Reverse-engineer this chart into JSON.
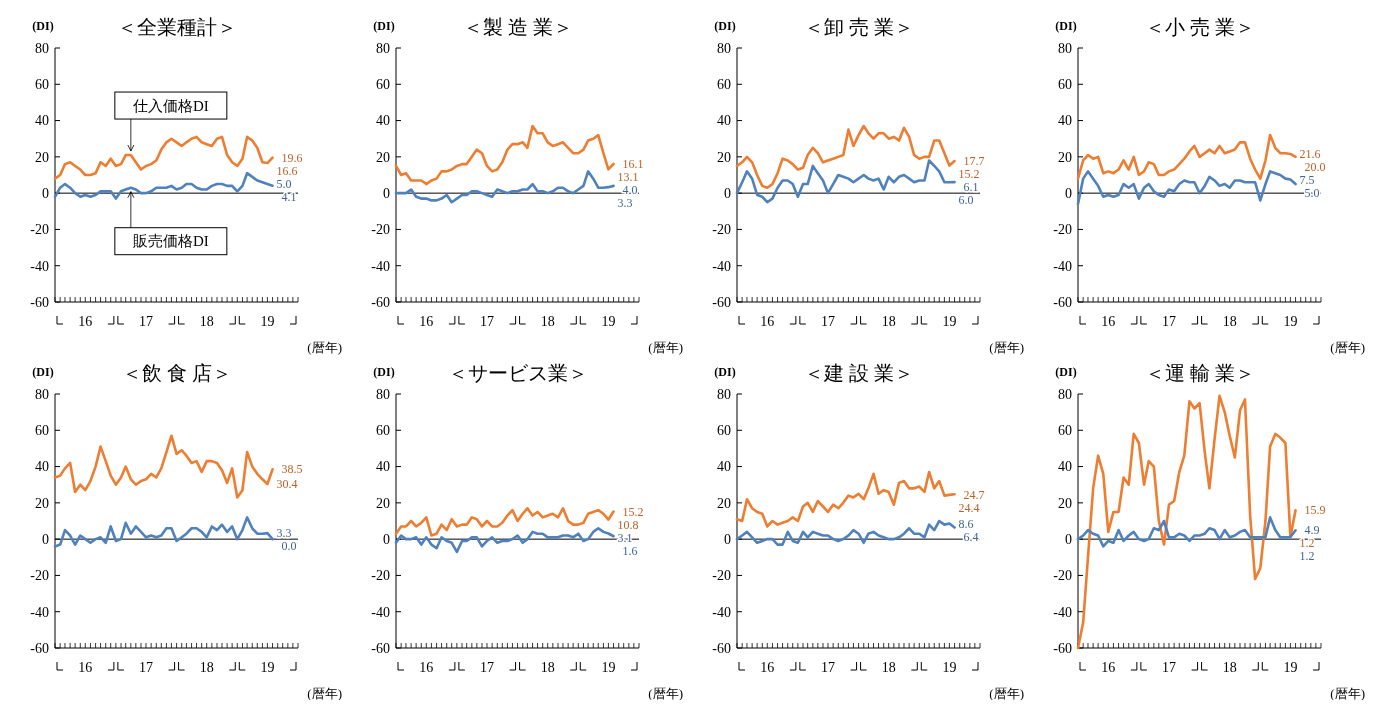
{
  "chart_data": [
    {
      "type": "line",
      "title": "＜全業種計＞",
      "ylabel": "(DI)",
      "xlabel": "(暦年)",
      "ylim": [
        -60,
        80
      ],
      "yticks": [
        -60,
        -40,
        -20,
        0,
        20,
        40,
        60,
        80
      ],
      "xlim": [
        "2016-01",
        "2020-01"
      ],
      "xticks": [
        {
          "value": "2016-07",
          "label": "16"
        },
        {
          "value": "2017-07",
          "label": "17"
        },
        {
          "value": "2018-07",
          "label": "18"
        },
        {
          "value": "2019-07",
          "label": "19"
        }
      ],
      "ref_lines": [
        {
          "axis": "y",
          "value": 0,
          "color": "#000000"
        }
      ],
      "x": [
        "2016-01",
        "2016-02",
        "2016-03",
        "2016-04",
        "2016-05",
        "2016-06",
        "2016-07",
        "2016-08",
        "2016-09",
        "2016-10",
        "2016-11",
        "2016-12",
        "2017-01",
        "2017-02",
        "2017-03",
        "2017-04",
        "2017-05",
        "2017-06",
        "2017-07",
        "2017-08",
        "2017-09",
        "2017-10",
        "2017-11",
        "2017-12",
        "2018-01",
        "2018-02",
        "2018-03",
        "2018-04",
        "2018-05",
        "2018-06",
        "2018-07",
        "2018-08",
        "2018-09",
        "2018-10",
        "2018-11",
        "2018-12",
        "2019-01",
        "2019-02",
        "2019-03",
        "2019-04",
        "2019-05",
        "2019-06",
        "2019-07",
        "2019-08"
      ],
      "series": [
        {
          "name": "仕入価格DI",
          "color": "#ed7d31",
          "values": [
            8,
            10,
            16,
            17,
            15,
            13,
            10,
            10,
            11,
            17,
            15,
            19,
            15,
            16,
            21,
            21,
            17,
            13,
            15,
            16,
            18,
            24,
            28,
            30,
            28,
            26,
            28,
            30,
            31,
            28,
            27,
            26,
            30,
            31,
            21,
            17,
            15,
            19,
            31,
            29,
            25,
            17,
            16.6,
            19.6
          ],
          "value_labels": [
            null,
            null,
            null,
            null,
            null,
            null,
            null,
            null,
            null,
            null,
            null,
            null,
            null,
            null,
            null,
            null,
            null,
            null,
            null,
            null,
            null,
            null,
            null,
            null,
            null,
            null,
            null,
            null,
            null,
            null,
            null,
            null,
            null,
            null,
            null,
            null,
            null,
            null,
            null,
            null,
            null,
            null,
            "16.6",
            "19.6"
          ]
        },
        {
          "name": "販売価格DI",
          "color": "#4f81bd",
          "values": [
            -2,
            3,
            5,
            3,
            0,
            -2,
            -1,
            -2,
            -1,
            1,
            1,
            1,
            -3,
            1,
            2,
            3,
            2,
            0,
            0,
            1,
            3,
            3,
            3,
            4,
            2,
            3,
            5,
            5,
            3,
            2,
            2,
            4,
            5,
            5,
            4,
            4,
            1,
            4,
            11,
            9,
            7,
            6,
            5.0,
            4.1
          ],
          "value_labels": [
            null,
            null,
            null,
            null,
            null,
            null,
            null,
            null,
            null,
            null,
            null,
            null,
            null,
            null,
            null,
            null,
            null,
            null,
            null,
            null,
            null,
            null,
            null,
            null,
            null,
            null,
            null,
            null,
            null,
            null,
            null,
            null,
            null,
            null,
            null,
            null,
            null,
            null,
            null,
            null,
            null,
            null,
            "5.0",
            "4.1"
          ]
        }
      ]
    },
    {
      "type": "line",
      "title": "＜製 造 業＞",
      "ylabel": "(DI)",
      "xlabel": "(暦年)",
      "ylim": [
        -60,
        80
      ],
      "yticks": [
        -60,
        -40,
        -20,
        0,
        20,
        40,
        60,
        80
      ],
      "xlim": [
        "2016-01",
        "2020-01"
      ],
      "xticks": [
        {
          "value": "2016-07",
          "label": "16"
        },
        {
          "value": "2017-07",
          "label": "17"
        },
        {
          "value": "2018-07",
          "label": "18"
        },
        {
          "value": "2019-07",
          "label": "19"
        }
      ],
      "ref_lines": [
        {
          "axis": "y",
          "value": 0,
          "color": "#000000"
        }
      ],
      "x": [
        "2016-01",
        "2016-02",
        "2016-03",
        "2016-04",
        "2016-05",
        "2016-06",
        "2016-07",
        "2016-08",
        "2016-09",
        "2016-10",
        "2016-11",
        "2016-12",
        "2017-01",
        "2017-02",
        "2017-03",
        "2017-04",
        "2017-05",
        "2017-06",
        "2017-07",
        "2017-08",
        "2017-09",
        "2017-10",
        "2017-11",
        "2017-12",
        "2018-01",
        "2018-02",
        "2018-03",
        "2018-04",
        "2018-05",
        "2018-06",
        "2018-07",
        "2018-08",
        "2018-09",
        "2018-10",
        "2018-11",
        "2018-12",
        "2019-01",
        "2019-02",
        "2019-03",
        "2019-04",
        "2019-05",
        "2019-06",
        "2019-07",
        "2019-08"
      ],
      "series": [
        {
          "color": "#ed7d31",
          "values": [
            15,
            10,
            11,
            7,
            7,
            7,
            5,
            7,
            8,
            12,
            12,
            13,
            15,
            16,
            16,
            20,
            24,
            22,
            15,
            12,
            13,
            17,
            24,
            27,
            27,
            28,
            25,
            37,
            33,
            33,
            28,
            26,
            27,
            28,
            25,
            22,
            22,
            24,
            29,
            30,
            32,
            22,
            13.1,
            16.1
          ],
          "value_labels": [
            null,
            null,
            null,
            null,
            null,
            null,
            null,
            null,
            null,
            null,
            null,
            null,
            null,
            null,
            null,
            null,
            null,
            null,
            null,
            null,
            null,
            null,
            null,
            null,
            null,
            null,
            null,
            null,
            null,
            null,
            null,
            null,
            null,
            null,
            null,
            null,
            null,
            null,
            null,
            null,
            null,
            null,
            "13.1",
            "16.1"
          ]
        },
        {
          "color": "#4f81bd",
          "values": [
            0,
            0,
            0,
            2,
            -2,
            -3,
            -3,
            -4,
            -4,
            -3,
            -1,
            -5,
            -3,
            -1,
            -1,
            1,
            1,
            0,
            -1,
            -2,
            2,
            1,
            0,
            1,
            1,
            2,
            2,
            5,
            1,
            1,
            0,
            1,
            3,
            3,
            1,
            0,
            2,
            4,
            12,
            8,
            3,
            3,
            3.3,
            4.0
          ],
          "value_labels": [
            null,
            null,
            null,
            null,
            null,
            null,
            null,
            null,
            null,
            null,
            null,
            null,
            null,
            null,
            null,
            null,
            null,
            null,
            null,
            null,
            null,
            null,
            null,
            null,
            null,
            null,
            null,
            null,
            null,
            null,
            null,
            null,
            null,
            null,
            null,
            null,
            null,
            null,
            null,
            null,
            null,
            null,
            "3.3",
            "4.0"
          ]
        }
      ]
    },
    {
      "type": "line",
      "title": "＜卸 売 業＞",
      "ylabel": "(DI)",
      "xlabel": "(暦年)",
      "ylim": [
        -60,
        80
      ],
      "yticks": [
        -60,
        -40,
        -20,
        0,
        20,
        40,
        60,
        80
      ],
      "xlim": [
        "2016-01",
        "2020-01"
      ],
      "xticks": [
        {
          "value": "2016-07",
          "label": "16"
        },
        {
          "value": "2017-07",
          "label": "17"
        },
        {
          "value": "2018-07",
          "label": "18"
        },
        {
          "value": "2019-07",
          "label": "19"
        }
      ],
      "ref_lines": [
        {
          "axis": "y",
          "value": 0,
          "color": "#000000"
        }
      ],
      "x": [
        "2016-01",
        "2016-02",
        "2016-03",
        "2016-04",
        "2016-05",
        "2016-06",
        "2016-07",
        "2016-08",
        "2016-09",
        "2016-10",
        "2016-11",
        "2016-12",
        "2017-01",
        "2017-02",
        "2017-03",
        "2017-04",
        "2017-05",
        "2017-06",
        "2017-07",
        "2017-08",
        "2017-09",
        "2017-10",
        "2017-11",
        "2017-12",
        "2018-01",
        "2018-02",
        "2018-03",
        "2018-04",
        "2018-05",
        "2018-06",
        "2018-07",
        "2018-08",
        "2018-09",
        "2018-10",
        "2018-11",
        "2018-12",
        "2019-01",
        "2019-02",
        "2019-03",
        "2019-04",
        "2019-05",
        "2019-06",
        "2019-07",
        "2019-08"
      ],
      "series": [
        {
          "color": "#ed7d31",
          "values": [
            15,
            17,
            20,
            17,
            10,
            4,
            3,
            5,
            11,
            19,
            18,
            16,
            13,
            14,
            21,
            25,
            22,
            17,
            18,
            19,
            20,
            21,
            35,
            26,
            32,
            37,
            33,
            30,
            33,
            33,
            30,
            31,
            29,
            36,
            31,
            21,
            19,
            20,
            20,
            29,
            29,
            22,
            15.2,
            17.7
          ],
          "value_labels": [
            null,
            null,
            null,
            null,
            null,
            null,
            null,
            null,
            null,
            null,
            null,
            null,
            null,
            null,
            null,
            null,
            null,
            null,
            null,
            null,
            null,
            null,
            null,
            null,
            null,
            null,
            null,
            null,
            null,
            null,
            null,
            null,
            null,
            null,
            null,
            null,
            null,
            null,
            null,
            null,
            null,
            null,
            "15.2",
            "17.7"
          ]
        },
        {
          "color": "#4f81bd",
          "values": [
            0,
            6,
            12,
            8,
            -1,
            -2,
            -5,
            -3,
            3,
            7,
            7,
            5,
            -2,
            5,
            5,
            15,
            11,
            7,
            0,
            5,
            10,
            9,
            8,
            6,
            8,
            10,
            8,
            7,
            8,
            2,
            9,
            6,
            9,
            10,
            8,
            6,
            7,
            7,
            18,
            15,
            12,
            6,
            6.0,
            6.1
          ],
          "value_labels": [
            null,
            null,
            null,
            null,
            null,
            null,
            null,
            null,
            null,
            null,
            null,
            null,
            null,
            null,
            null,
            null,
            null,
            null,
            null,
            null,
            null,
            null,
            null,
            null,
            null,
            null,
            null,
            null,
            null,
            null,
            null,
            null,
            null,
            null,
            null,
            null,
            null,
            null,
            null,
            null,
            null,
            null,
            "6.0",
            "6.1"
          ]
        }
      ]
    },
    {
      "type": "line",
      "title": "＜小 売 業＞",
      "ylabel": "(DI)",
      "xlabel": "(暦年)",
      "ylim": [
        -60,
        80
      ],
      "yticks": [
        -60,
        -40,
        -20,
        0,
        20,
        40,
        60,
        80
      ],
      "xlim": [
        "2016-01",
        "2020-01"
      ],
      "xticks": [
        {
          "value": "2016-07",
          "label": "16"
        },
        {
          "value": "2017-07",
          "label": "17"
        },
        {
          "value": "2018-07",
          "label": "18"
        },
        {
          "value": "2019-07",
          "label": "19"
        }
      ],
      "ref_lines": [
        {
          "axis": "y",
          "value": 0,
          "color": "#000000"
        }
      ],
      "x": [
        "2016-01",
        "2016-02",
        "2016-03",
        "2016-04",
        "2016-05",
        "2016-06",
        "2016-07",
        "2016-08",
        "2016-09",
        "2016-10",
        "2016-11",
        "2016-12",
        "2017-01",
        "2017-02",
        "2017-03",
        "2017-04",
        "2017-05",
        "2017-06",
        "2017-07",
        "2017-08",
        "2017-09",
        "2017-10",
        "2017-11",
        "2017-12",
        "2018-01",
        "2018-02",
        "2018-03",
        "2018-04",
        "2018-05",
        "2018-06",
        "2018-07",
        "2018-08",
        "2018-09",
        "2018-10",
        "2018-11",
        "2018-12",
        "2019-01",
        "2019-02",
        "2019-03",
        "2019-04",
        "2019-05",
        "2019-06",
        "2019-07",
        "2019-08"
      ],
      "series": [
        {
          "color": "#ed7d31",
          "values": [
            8,
            18,
            21,
            19,
            20,
            11,
            12,
            11,
            13,
            18,
            13,
            20,
            10,
            12,
            17,
            16,
            10,
            10,
            12,
            13,
            16,
            19,
            23,
            26,
            20,
            22,
            24,
            22,
            26,
            22,
            23,
            24,
            28,
            28,
            19,
            13,
            8,
            18,
            32,
            25,
            22,
            22,
            21.6,
            20.0
          ],
          "value_labels": [
            null,
            null,
            null,
            null,
            null,
            null,
            null,
            null,
            null,
            null,
            null,
            null,
            null,
            null,
            null,
            null,
            null,
            null,
            null,
            null,
            null,
            null,
            null,
            null,
            null,
            null,
            null,
            null,
            null,
            null,
            null,
            null,
            null,
            null,
            null,
            null,
            null,
            null,
            null,
            null,
            null,
            null,
            "21.6",
            "20.0"
          ]
        },
        {
          "color": "#4f81bd",
          "values": [
            -6,
            8,
            12,
            8,
            4,
            -2,
            -1,
            -2,
            -1,
            5,
            3,
            5,
            -3,
            3,
            5,
            1,
            -1,
            -2,
            2,
            1,
            5,
            7,
            6,
            6,
            0,
            4,
            9,
            7,
            4,
            5,
            3,
            7,
            7,
            6,
            6,
            6,
            -4,
            5,
            12,
            11,
            10,
            8,
            7.5,
            5.0
          ],
          "value_labels": [
            null,
            null,
            null,
            null,
            null,
            null,
            null,
            null,
            null,
            null,
            null,
            null,
            null,
            null,
            null,
            null,
            null,
            null,
            null,
            null,
            null,
            null,
            null,
            null,
            null,
            null,
            null,
            null,
            null,
            null,
            null,
            null,
            null,
            null,
            null,
            null,
            null,
            null,
            null,
            null,
            null,
            null,
            "7.5",
            "5.0"
          ]
        }
      ]
    },
    {
      "type": "line",
      "title": "＜飲 食 店＞",
      "ylabel": "(DI)",
      "xlabel": "(暦年)",
      "ylim": [
        -60,
        80
      ],
      "yticks": [
        -60,
        -40,
        -20,
        0,
        20,
        40,
        60,
        80
      ],
      "xlim": [
        "2016-01",
        "2020-01"
      ],
      "xticks": [
        {
          "value": "2016-07",
          "label": "16"
        },
        {
          "value": "2017-07",
          "label": "17"
        },
        {
          "value": "2018-07",
          "label": "18"
        },
        {
          "value": "2019-07",
          "label": "19"
        }
      ],
      "ref_lines": [
        {
          "axis": "y",
          "value": 0,
          "color": "#000000"
        }
      ],
      "x": [
        "2016-01",
        "2016-02",
        "2016-03",
        "2016-04",
        "2016-05",
        "2016-06",
        "2016-07",
        "2016-08",
        "2016-09",
        "2016-10",
        "2016-11",
        "2016-12",
        "2017-01",
        "2017-02",
        "2017-03",
        "2017-04",
        "2017-05",
        "2017-06",
        "2017-07",
        "2017-08",
        "2017-09",
        "2017-10",
        "2017-11",
        "2017-12",
        "2018-01",
        "2018-02",
        "2018-03",
        "2018-04",
        "2018-05",
        "2018-06",
        "2018-07",
        "2018-08",
        "2018-09",
        "2018-10",
        "2018-11",
        "2018-12",
        "2019-01",
        "2019-02",
        "2019-03",
        "2019-04",
        "2019-05",
        "2019-06",
        "2019-07",
        "2019-08"
      ],
      "series": [
        {
          "color": "#ed7d31",
          "values": [
            34,
            35,
            39,
            42,
            26,
            30,
            27,
            32,
            40,
            51,
            43,
            35,
            30,
            34,
            40,
            33,
            30,
            32,
            33,
            36,
            34,
            39,
            48,
            57,
            47,
            49,
            46,
            42,
            43,
            37,
            43,
            43,
            42,
            38,
            31,
            39,
            23,
            27,
            48,
            40,
            36,
            33,
            30.4,
            38.5
          ],
          "value_labels": [
            null,
            null,
            null,
            null,
            null,
            null,
            null,
            null,
            null,
            null,
            null,
            null,
            null,
            null,
            null,
            null,
            null,
            null,
            null,
            null,
            null,
            null,
            null,
            null,
            null,
            null,
            null,
            null,
            null,
            null,
            null,
            null,
            null,
            null,
            null,
            null,
            null,
            null,
            null,
            null,
            null,
            null,
            "30.4",
            "38.5"
          ]
        },
        {
          "color": "#4f81bd",
          "values": [
            -4,
            -3,
            5,
            2,
            -3,
            2,
            0,
            -2,
            0,
            1,
            -2,
            7,
            -1,
            0,
            9,
            3,
            7,
            4,
            1,
            2,
            1,
            2,
            6,
            6,
            -1,
            1,
            3,
            6,
            6,
            4,
            1,
            7,
            5,
            8,
            4,
            7,
            0,
            5,
            12,
            6,
            3,
            3,
            3.3,
            0.0
          ],
          "value_labels": [
            null,
            null,
            null,
            null,
            null,
            null,
            null,
            null,
            null,
            null,
            null,
            null,
            null,
            null,
            null,
            null,
            null,
            null,
            null,
            null,
            null,
            null,
            null,
            null,
            null,
            null,
            null,
            null,
            null,
            null,
            null,
            null,
            null,
            null,
            null,
            null,
            null,
            null,
            null,
            null,
            null,
            null,
            "3.3",
            "0.0"
          ]
        }
      ]
    },
    {
      "type": "line",
      "title": "＜サービス業＞",
      "ylabel": "(DI)",
      "xlabel": "(暦年)",
      "ylim": [
        -60,
        80
      ],
      "yticks": [
        -60,
        -40,
        -20,
        0,
        20,
        40,
        60,
        80
      ],
      "xlim": [
        "2016-01",
        "2020-01"
      ],
      "xticks": [
        {
          "value": "2016-07",
          "label": "16"
        },
        {
          "value": "2017-07",
          "label": "17"
        },
        {
          "value": "2018-07",
          "label": "18"
        },
        {
          "value": "2019-07",
          "label": "19"
        }
      ],
      "ref_lines": [
        {
          "axis": "y",
          "value": 0,
          "color": "#000000"
        }
      ],
      "x": [
        "2016-01",
        "2016-02",
        "2016-03",
        "2016-04",
        "2016-05",
        "2016-06",
        "2016-07",
        "2016-08",
        "2016-09",
        "2016-10",
        "2016-11",
        "2016-12",
        "2017-01",
        "2017-02",
        "2017-03",
        "2017-04",
        "2017-05",
        "2017-06",
        "2017-07",
        "2017-08",
        "2017-09",
        "2017-10",
        "2017-11",
        "2017-12",
        "2018-01",
        "2018-02",
        "2018-03",
        "2018-04",
        "2018-05",
        "2018-06",
        "2018-07",
        "2018-08",
        "2018-09",
        "2018-10",
        "2018-11",
        "2018-12",
        "2019-01",
        "2019-02",
        "2019-03",
        "2019-04",
        "2019-05",
        "2019-06",
        "2019-07",
        "2019-08"
      ],
      "series": [
        {
          "color": "#ed7d31",
          "values": [
            3,
            7,
            7,
            10,
            7,
            9,
            12,
            2,
            3,
            8,
            5,
            11,
            7,
            8,
            8,
            12,
            11,
            7,
            10,
            7,
            7,
            9,
            13,
            16,
            10,
            14,
            17,
            13,
            15,
            12,
            13,
            14,
            12,
            17,
            10,
            8,
            8,
            9,
            14,
            15,
            16,
            14,
            10.8,
            15.2
          ],
          "value_labels": [
            null,
            null,
            null,
            null,
            null,
            null,
            null,
            null,
            null,
            null,
            null,
            null,
            null,
            null,
            null,
            null,
            null,
            null,
            null,
            null,
            null,
            null,
            null,
            null,
            null,
            null,
            null,
            null,
            null,
            null,
            null,
            null,
            null,
            null,
            null,
            null,
            null,
            null,
            null,
            null,
            null,
            null,
            "10.8",
            "15.2"
          ]
        },
        {
          "color": "#4f81bd",
          "values": [
            -2,
            2,
            0,
            0,
            1,
            -3,
            1,
            -3,
            -5,
            1,
            -1,
            -2,
            -7,
            -1,
            -1,
            1,
            1,
            -4,
            -1,
            1,
            -2,
            -1,
            -1,
            0,
            2,
            -2,
            0,
            4,
            3,
            3,
            1,
            1,
            1,
            2,
            2,
            1,
            3,
            -1,
            0,
            4,
            6,
            4,
            3.1,
            1.6
          ],
          "value_labels": [
            null,
            null,
            null,
            null,
            null,
            null,
            null,
            null,
            null,
            null,
            null,
            null,
            null,
            null,
            null,
            null,
            null,
            null,
            null,
            null,
            null,
            null,
            null,
            null,
            null,
            null,
            null,
            null,
            null,
            null,
            null,
            null,
            null,
            null,
            null,
            null,
            null,
            null,
            null,
            null,
            null,
            null,
            "3.1",
            "1.6"
          ]
        }
      ]
    },
    {
      "type": "line",
      "title": "＜建 設 業＞",
      "ylabel": "(DI)",
      "xlabel": "(暦年)",
      "ylim": [
        -60,
        80
      ],
      "yticks": [
        -60,
        -40,
        -20,
        0,
        20,
        40,
        60,
        80
      ],
      "xlim": [
        "2016-01",
        "2020-01"
      ],
      "xticks": [
        {
          "value": "2016-07",
          "label": "16"
        },
        {
          "value": "2017-07",
          "label": "17"
        },
        {
          "value": "2018-07",
          "label": "18"
        },
        {
          "value": "2019-07",
          "label": "19"
        }
      ],
      "ref_lines": [
        {
          "axis": "y",
          "value": 0,
          "color": "#000000"
        }
      ],
      "x": [
        "2016-01",
        "2016-02",
        "2016-03",
        "2016-04",
        "2016-05",
        "2016-06",
        "2016-07",
        "2016-08",
        "2016-09",
        "2016-10",
        "2016-11",
        "2016-12",
        "2017-01",
        "2017-02",
        "2017-03",
        "2017-04",
        "2017-05",
        "2017-06",
        "2017-07",
        "2017-08",
        "2017-09",
        "2017-10",
        "2017-11",
        "2017-12",
        "2018-01",
        "2018-02",
        "2018-03",
        "2018-04",
        "2018-05",
        "2018-06",
        "2018-07",
        "2018-08",
        "2018-09",
        "2018-10",
        "2018-11",
        "2018-12",
        "2019-01",
        "2019-02",
        "2019-03",
        "2019-04",
        "2019-05",
        "2019-06",
        "2019-07",
        "2019-08"
      ],
      "series": [
        {
          "color": "#ed7d31",
          "values": [
            11,
            10,
            22,
            17,
            15,
            14,
            7,
            10,
            8,
            9,
            10,
            12,
            10,
            18,
            20,
            15,
            21,
            18,
            15,
            19,
            17,
            20,
            24,
            23,
            25,
            22,
            28,
            36,
            25,
            27,
            26,
            19,
            31,
            32,
            28,
            28,
            29,
            26,
            37,
            28,
            32,
            24,
            24.4,
            24.7
          ],
          "value_labels": [
            null,
            null,
            null,
            null,
            null,
            null,
            null,
            null,
            null,
            null,
            null,
            null,
            null,
            null,
            null,
            null,
            null,
            null,
            null,
            null,
            null,
            null,
            null,
            null,
            null,
            null,
            null,
            null,
            null,
            null,
            null,
            null,
            null,
            null,
            null,
            null,
            null,
            null,
            null,
            null,
            null,
            null,
            "24.4",
            "24.7"
          ]
        },
        {
          "color": "#4f81bd",
          "values": [
            0,
            2,
            4,
            1,
            -2,
            -1,
            0,
            0,
            -3,
            -3,
            4,
            -1,
            -2,
            4,
            1,
            4,
            3,
            2,
            2,
            0,
            -1,
            0,
            2,
            5,
            3,
            -2,
            3,
            4,
            2,
            1,
            0,
            0,
            1,
            3,
            6,
            3,
            3,
            1,
            8,
            5,
            10,
            8,
            8.6,
            6.4
          ],
          "value_labels": [
            null,
            null,
            null,
            null,
            null,
            null,
            null,
            null,
            null,
            null,
            null,
            null,
            null,
            null,
            null,
            null,
            null,
            null,
            null,
            null,
            null,
            null,
            null,
            null,
            null,
            null,
            null,
            null,
            null,
            null,
            null,
            null,
            null,
            null,
            null,
            null,
            null,
            null,
            null,
            null,
            null,
            null,
            "8.6",
            "6.4"
          ]
        }
      ]
    },
    {
      "type": "line",
      "title": "＜運 輸 業＞",
      "ylabel": "(DI)",
      "xlabel": "(暦年)",
      "ylim": [
        -60,
        80
      ],
      "yticks": [
        -60,
        -40,
        -20,
        0,
        20,
        40,
        60,
        80
      ],
      "xlim": [
        "2016-01",
        "2020-01"
      ],
      "xticks": [
        {
          "value": "2016-07",
          "label": "16"
        },
        {
          "value": "2017-07",
          "label": "17"
        },
        {
          "value": "2018-07",
          "label": "18"
        },
        {
          "value": "2019-07",
          "label": "19"
        }
      ],
      "ref_lines": [
        {
          "axis": "y",
          "value": 0,
          "color": "#000000"
        }
      ],
      "x": [
        "2016-01",
        "2016-02",
        "2016-03",
        "2016-04",
        "2016-05",
        "2016-06",
        "2016-07",
        "2016-08",
        "2016-09",
        "2016-10",
        "2016-11",
        "2016-12",
        "2017-01",
        "2017-02",
        "2017-03",
        "2017-04",
        "2017-05",
        "2017-06",
        "2017-07",
        "2017-08",
        "2017-09",
        "2017-10",
        "2017-11",
        "2017-12",
        "2018-01",
        "2018-02",
        "2018-03",
        "2018-04",
        "2018-05",
        "2018-06",
        "2018-07",
        "2018-08",
        "2018-09",
        "2018-10",
        "2018-11",
        "2018-12",
        "2019-01",
        "2019-02",
        "2019-03",
        "2019-04",
        "2019-05",
        "2019-06",
        "2019-07",
        "2019-08"
      ],
      "series": [
        {
          "color": "#ed7d31",
          "values": [
            -60,
            -46,
            -10,
            28,
            46,
            36,
            4,
            15,
            15,
            34,
            30,
            58,
            53,
            30,
            43,
            40,
            10,
            -3,
            19,
            21,
            37,
            46,
            76,
            72,
            75,
            48,
            28,
            55,
            79,
            70,
            57,
            45,
            71,
            77,
            13,
            -22,
            -16,
            10,
            51,
            58,
            56,
            53,
            1.2,
            15.9
          ],
          "value_labels": [
            null,
            null,
            null,
            null,
            null,
            null,
            null,
            null,
            null,
            null,
            null,
            null,
            null,
            null,
            null,
            null,
            null,
            null,
            null,
            null,
            null,
            null,
            null,
            null,
            null,
            null,
            null,
            null,
            null,
            null,
            null,
            null,
            null,
            null,
            null,
            null,
            null,
            null,
            null,
            null,
            null,
            null,
            "1.2",
            "15.9"
          ]
        },
        {
          "color": "#4f81bd",
          "values": [
            0,
            2,
            5,
            3,
            2,
            -4,
            -1,
            -2,
            5,
            -1,
            2,
            4,
            0,
            -1,
            0,
            6,
            5,
            10,
            1,
            1,
            3,
            2,
            -1,
            2,
            2,
            3,
            6,
            5,
            0,
            5,
            1,
            2,
            4,
            5,
            1,
            1,
            1,
            1,
            12,
            5,
            1,
            1,
            1.2,
            4.9
          ],
          "value_labels": [
            null,
            null,
            null,
            null,
            null,
            null,
            null,
            null,
            null,
            null,
            null,
            null,
            null,
            null,
            null,
            null,
            null,
            null,
            null,
            null,
            null,
            null,
            null,
            null,
            null,
            null,
            null,
            null,
            null,
            null,
            null,
            null,
            null,
            null,
            null,
            null,
            null,
            null,
            null,
            null,
            null,
            null,
            "1.2",
            "4.9"
          ]
        }
      ]
    }
  ]
}
